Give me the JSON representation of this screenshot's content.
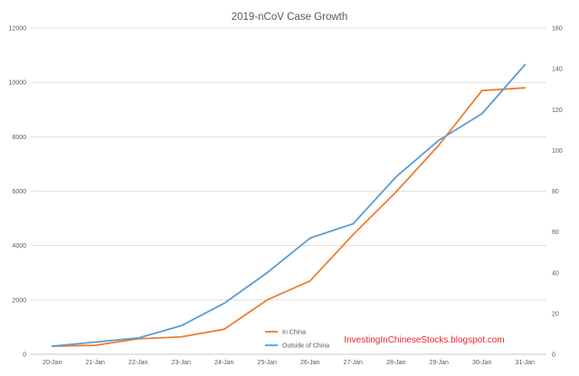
{
  "chart_data": {
    "type": "line",
    "title": "2019-nCoV Case Growth",
    "categories": [
      "20-Jan",
      "21-Jan",
      "22-Jan",
      "23-Jan",
      "24-Jan",
      "25-Jan",
      "26-Jan",
      "27-Jan",
      "28-Jan",
      "29-Jan",
      "30-Jan",
      "31-Jan"
    ],
    "series": [
      {
        "name": "In China",
        "axis": "left",
        "color": "#ed7d31",
        "values": [
          300,
          330,
          570,
          640,
          920,
          2000,
          2700,
          4400,
          5970,
          7700,
          9700,
          9800
        ]
      },
      {
        "name": "Outside of China",
        "axis": "right",
        "color": "#5b9bd5",
        "values": [
          4,
          6,
          8,
          14,
          25,
          40,
          57,
          64,
          87,
          105,
          118,
          142
        ]
      }
    ],
    "y_left": {
      "min": 0,
      "max": 12000,
      "ticks": [
        0,
        2000,
        4000,
        6000,
        8000,
        10000,
        12000
      ]
    },
    "y_right": {
      "min": 0,
      "max": 160,
      "ticks": [
        0,
        20,
        40,
        60,
        80,
        100,
        120,
        140,
        160
      ]
    },
    "legend": {
      "placement": "bottom-center"
    },
    "grid": {
      "horizontal": true,
      "color": "#d9d9d9"
    }
  },
  "watermark": "InvestingInChineseStocks.blogspot.com"
}
